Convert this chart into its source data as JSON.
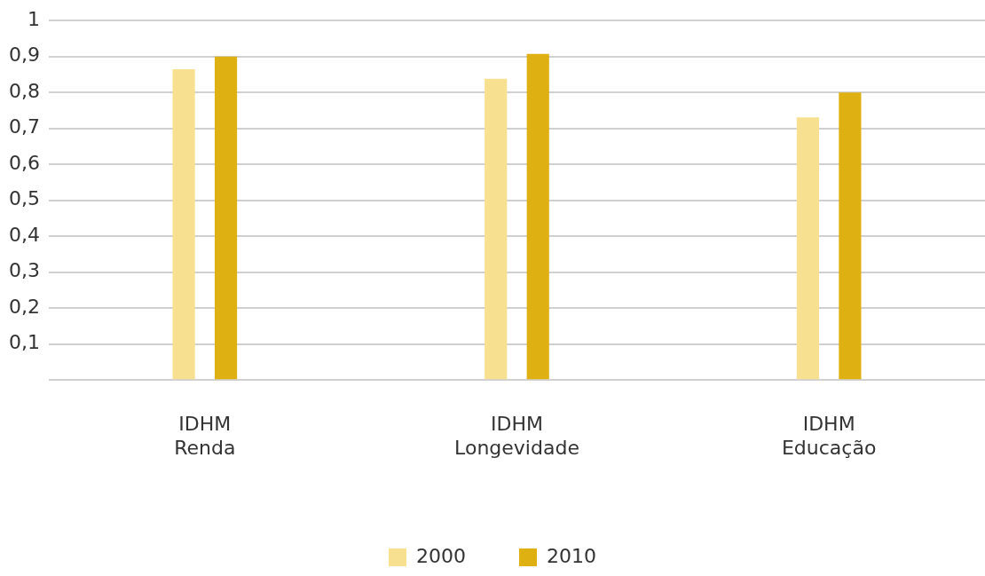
{
  "chart_data": {
    "type": "bar",
    "categories": [
      "IDHM\nRenda",
      "IDHM\nLongevidade",
      "IDHM\nEducação"
    ],
    "series": [
      {
        "name": "2000",
        "color": "#f7e08f",
        "values": [
          0.865,
          0.838,
          0.731
        ]
      },
      {
        "name": "2010",
        "color": "#dfb012",
        "values": [
          0.9,
          0.907,
          0.8
        ]
      }
    ],
    "ylim": [
      0,
      1
    ],
    "yticks": [
      {
        "value": 0,
        "label": null
      },
      {
        "value": 0.1,
        "label": "0,1"
      },
      {
        "value": 0.2,
        "label": "0,2"
      },
      {
        "value": 0.3,
        "label": "0,3"
      },
      {
        "value": 0.4,
        "label": "0,4"
      },
      {
        "value": 0.5,
        "label": "0,5"
      },
      {
        "value": 0.6,
        "label": "0,6"
      },
      {
        "value": 0.7,
        "label": "0,7"
      },
      {
        "value": 0.8,
        "label": "0,8"
      },
      {
        "value": 0.9,
        "label": "0,9"
      },
      {
        "value": 1,
        "label": "1"
      }
    ],
    "grid": "y",
    "legend": "bottom"
  }
}
